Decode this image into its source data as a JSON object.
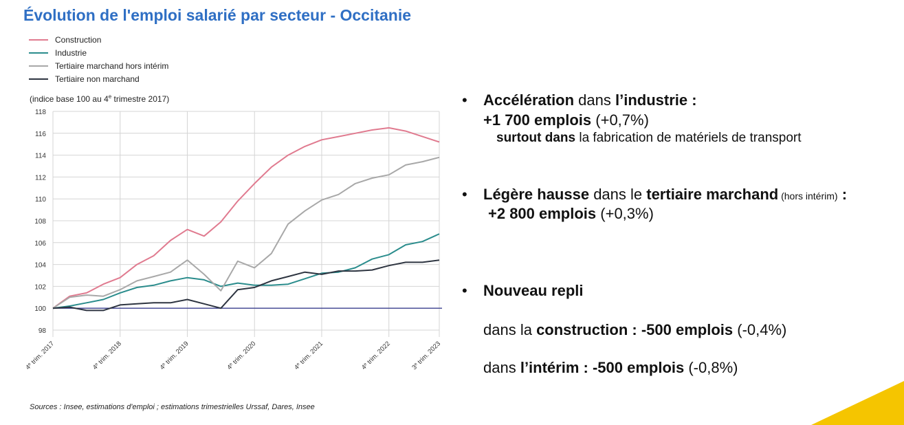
{
  "title": "Évolution de l'emploi salarié par secteur - Occitanie",
  "units_note": {
    "pre": "(indice base 100 au 4",
    "sup": "e",
    "post": " trimestre 2017)"
  },
  "source": "Sources : Insee, estimations d'emploi ; estimations trimestrielles Urssaf, Dares, Insee",
  "chart_data": {
    "type": "line",
    "ylim": [
      98,
      118
    ],
    "yticks": [
      "118",
      "116",
      "114",
      "112",
      "110",
      "108",
      "106",
      "104",
      "102",
      "100",
      "98"
    ],
    "ytick_values": [
      118,
      116,
      114,
      112,
      110,
      108,
      106,
      104,
      102,
      100,
      98
    ],
    "grid": true,
    "legend_position": "top-left",
    "x_count": 24,
    "xtick_indices": [
      0,
      4,
      8,
      12,
      16,
      20,
      23
    ],
    "xticks": [
      {
        "sup_pre": "4",
        "sup": "e",
        "text": " trim. 2017"
      },
      {
        "sup_pre": "4",
        "sup": "e",
        "text": " trim. 2018"
      },
      {
        "sup_pre": "4",
        "sup": "e",
        "text": " trim. 2019"
      },
      {
        "sup_pre": "4",
        "sup": "e",
        "text": " trim. 2020"
      },
      {
        "sup_pre": "4",
        "sup": "e",
        "text": " trim. 2021"
      },
      {
        "sup_pre": "4",
        "sup": "e",
        "text": " trim. 2022"
      },
      {
        "sup_pre": "3",
        "sup": "e",
        "text": " trim. 2023"
      }
    ],
    "series": [
      {
        "name": "Construction",
        "color": "#e07a8f",
        "values": [
          100,
          101.1,
          101.4,
          102.2,
          102.8,
          104.0,
          104.8,
          106.2,
          107.2,
          106.6,
          107.9,
          109.8,
          111.4,
          112.9,
          114.0,
          114.8,
          115.4,
          115.7,
          116.0,
          116.3,
          116.5,
          116.2,
          115.7,
          115.2
        ]
      },
      {
        "name": "Industrie",
        "color": "#2a8c8c",
        "values": [
          100,
          100.2,
          100.5,
          100.8,
          101.4,
          101.9,
          102.1,
          102.5,
          102.8,
          102.6,
          102.0,
          102.3,
          102.1,
          102.1,
          102.2,
          102.7,
          103.2,
          103.3,
          103.7,
          104.5,
          104.9,
          105.8,
          106.1,
          106.8
        ]
      },
      {
        "name": "Tertiaire marchand hors intérim",
        "color": "#a8a8a8",
        "values": [
          100,
          101.0,
          101.2,
          101.1,
          101.7,
          102.5,
          102.9,
          103.3,
          104.4,
          103.1,
          101.6,
          104.3,
          103.7,
          105.0,
          107.7,
          108.9,
          109.9,
          110.4,
          111.4,
          111.9,
          112.2,
          113.1,
          113.4,
          113.8
        ]
      },
      {
        "name": "Tertiaire non marchand",
        "color": "#2d3440",
        "values": [
          100,
          100.1,
          99.8,
          99.8,
          100.3,
          100.4,
          100.5,
          100.5,
          100.8,
          100.4,
          100.0,
          101.7,
          101.9,
          102.5,
          102.9,
          103.3,
          103.1,
          103.4,
          103.4,
          103.5,
          103.9,
          104.2,
          104.2,
          104.4
        ]
      }
    ]
  },
  "bullets": {
    "b1": {
      "dot": "•",
      "l1_b1": "Accélération",
      "l1_t1": " dans ",
      "l1_b2": "l’industrie :",
      "l2_b": "+1 700 emplois",
      "l2_t": " (+0,7%)",
      "l3_b": "surtout dans",
      "l3_t": " la fabrication de matériels de transport"
    },
    "b2": {
      "dot": "•",
      "l1_b1": "Légère hausse",
      "l1_t1": " dans le ",
      "l1_b2": "tertiaire marchand",
      "l1_small": " (hors intérim)",
      "l1_b3": " :",
      "l2_b": "+2 800 emplois",
      "l2_t": " (+0,3%)"
    },
    "b3": {
      "dot": "•",
      "l1_b": "Nouveau repli",
      "l2_t1": "dans la ",
      "l2_b": "construction : -500 emplois",
      "l2_t2": "  (-0,4%)",
      "l3_t1": "dans ",
      "l3_b": "l’intérim : -500 emplois",
      "l3_t2": "  (-0,8%)"
    }
  },
  "corner_color": "#f5c500"
}
